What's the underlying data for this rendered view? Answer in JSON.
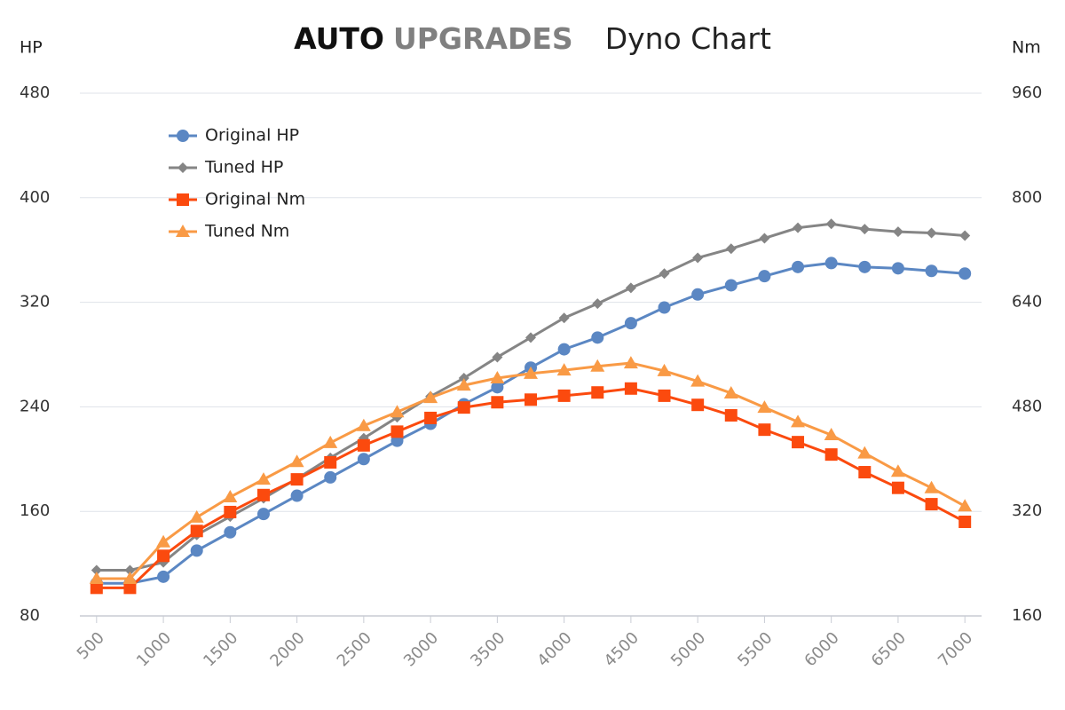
{
  "chart_data": {
    "type": "line",
    "title": {
      "brand_1": "AUTO",
      "brand_2": "UPGRADES",
      "text": "Dyno Chart"
    },
    "y_label": "HP",
    "y2_label": "Nm",
    "categories": [
      "500",
      null,
      "1000",
      null,
      "1500",
      null,
      "2000",
      null,
      "2500",
      null,
      "3000",
      null,
      "3500",
      null,
      "4000",
      null,
      "4500",
      null,
      "5000",
      null,
      "5500",
      null,
      "6000",
      null,
      "6500",
      null,
      "7000"
    ],
    "ylim": [
      80,
      480
    ],
    "yticks": [
      80,
      160,
      240,
      320,
      400,
      480
    ],
    "y2lim": [
      160,
      960
    ],
    "y2ticks": [
      160,
      320,
      480,
      640,
      800,
      960
    ],
    "grid": true,
    "legend": "upper-left",
    "series": [
      {
        "name": "Original HP",
        "color": "#5b87c3",
        "marker": "circle",
        "axis": "y",
        "values": [
          105,
          105,
          110,
          130,
          144,
          158,
          172,
          186,
          200,
          214,
          227,
          242,
          255,
          270,
          284,
          293,
          304,
          316,
          326,
          333,
          340,
          347,
          350,
          347,
          346,
          344,
          342
        ]
      },
      {
        "name": "Tuned HP",
        "color": "#858585",
        "marker": "diamond",
        "axis": "y",
        "values": [
          115,
          115,
          121,
          142,
          156,
          170,
          185,
          201,
          216,
          232,
          248,
          262,
          278,
          293,
          308,
          319,
          331,
          342,
          354,
          361,
          369,
          377,
          380,
          376,
          374,
          373,
          371
        ]
      },
      {
        "name": "Original Nm",
        "color": "#fb4a0e",
        "marker": "square",
        "axis": "y2",
        "values": [
          203,
          203,
          252,
          290,
          319,
          345,
          369,
          395,
          421,
          442,
          463,
          479,
          487,
          491,
          497,
          502,
          508,
          497,
          483,
          467,
          445,
          426,
          407,
          380,
          356,
          331,
          304
        ]
      },
      {
        "name": "Tuned Nm",
        "color": "#f99a45",
        "marker": "triangle",
        "axis": "y2",
        "values": [
          217,
          217,
          273,
          311,
          342,
          369,
          396,
          425,
          451,
          472,
          494,
          513,
          524,
          531,
          536,
          542,
          547,
          535,
          519,
          501,
          479,
          457,
          437,
          409,
          381,
          356,
          328
        ]
      }
    ]
  }
}
